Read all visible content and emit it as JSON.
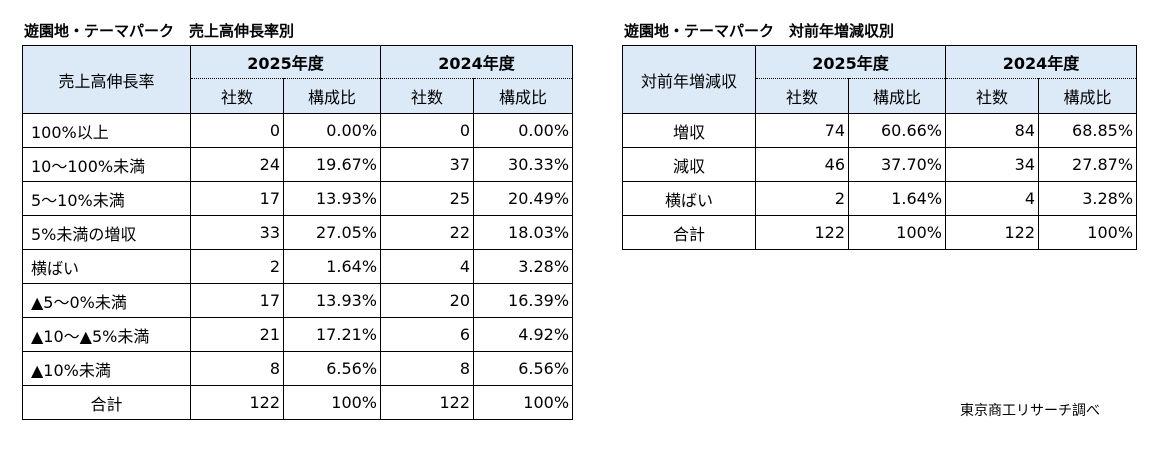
{
  "left": {
    "title": "遊園地・テーマパーク　売上高伸長率別",
    "row_header": "売上高伸長率",
    "years": [
      "2025年度",
      "2024年度"
    ],
    "subcols": [
      "社数",
      "構成比"
    ],
    "rows": [
      {
        "label": "100%以上",
        "c25": "0",
        "p25": "0.00%",
        "c24": "0",
        "p24": "0.00%"
      },
      {
        "label": "10～100%未満",
        "c25": "24",
        "p25": "19.67%",
        "c24": "37",
        "p24": "30.33%"
      },
      {
        "label": "5～10%未満",
        "c25": "17",
        "p25": "13.93%",
        "c24": "25",
        "p24": "20.49%"
      },
      {
        "label": "5%未満の増収",
        "c25": "33",
        "p25": "27.05%",
        "c24": "22",
        "p24": "18.03%"
      },
      {
        "label": "横ばい",
        "c25": "2",
        "p25": "1.64%",
        "c24": "4",
        "p24": "3.28%"
      },
      {
        "label": "▲5～0%未満",
        "c25": "17",
        "p25": "13.93%",
        "c24": "20",
        "p24": "16.39%"
      },
      {
        "label": "▲10～▲5%未満",
        "c25": "21",
        "p25": "17.21%",
        "c24": "6",
        "p24": "4.92%"
      },
      {
        "label": "▲10%未満",
        "c25": "8",
        "p25": "6.56%",
        "c24": "8",
        "p24": "6.56%"
      }
    ],
    "total": {
      "label": "合計",
      "c25": "122",
      "p25": "100%",
      "c24": "122",
      "p24": "100%"
    }
  },
  "right": {
    "title": "遊園地・テーマパーク　対前年増減収別",
    "row_header": "対前年増減収",
    "years": [
      "2025年度",
      "2024年度"
    ],
    "subcols": [
      "社数",
      "構成比"
    ],
    "rows": [
      {
        "label": "増収",
        "c25": "74",
        "p25": "60.66%",
        "c24": "84",
        "p24": "68.85%"
      },
      {
        "label": "減収",
        "c25": "46",
        "p25": "37.70%",
        "c24": "34",
        "p24": "27.87%"
      },
      {
        "label": "横ばい",
        "c25": "2",
        "p25": "1.64%",
        "c24": "4",
        "p24": "3.28%"
      }
    ],
    "total": {
      "label": "合計",
      "c25": "122",
      "p25": "100%",
      "c24": "122",
      "p24": "100%"
    }
  },
  "source": "東京商工リサーチ調べ",
  "colors": {
    "header_bg": "#dce9f7"
  }
}
